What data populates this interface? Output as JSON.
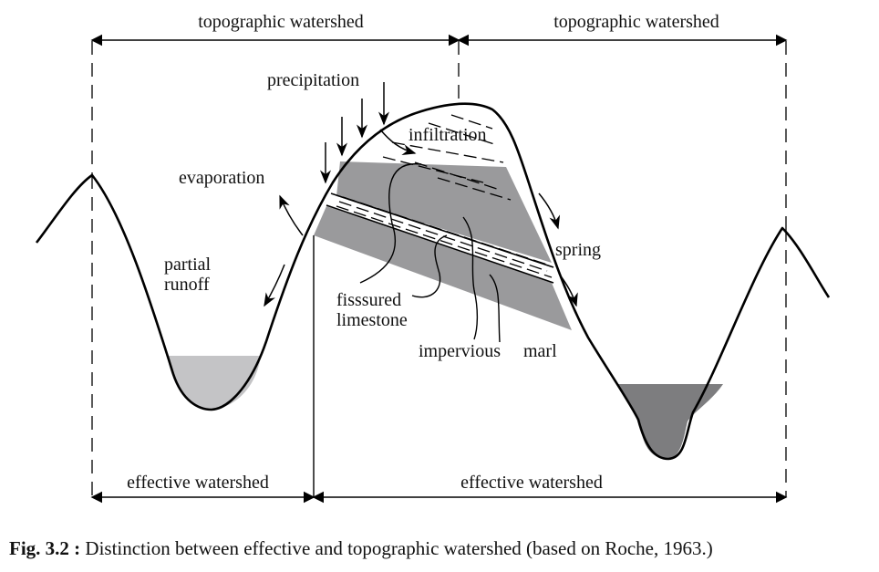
{
  "labels": {
    "top_left": "topographic watershed",
    "top_right": "topographic watershed",
    "precipitation": "precipitation",
    "infiltration": "infiltration",
    "evaporation": "evaporation",
    "partial_runoff_1": "partial",
    "partial_runoff_2": "runoff",
    "spring": "spring",
    "fissured_1": "fisssured",
    "fissured_2": "limestone",
    "impervious": "impervious",
    "marl": "marl",
    "bottom_left": "effective watershed",
    "bottom_right": "effective watershed"
  },
  "caption": {
    "prefix": "Fig. 3.2 :",
    "text": " Distinction between effective and topographic watershed (based on Roche, 1963.)"
  },
  "colors": {
    "limestone": "#9a9a9c",
    "left_water": "#c4c4c6",
    "right_water": "#7d7d7f",
    "line": "#000000"
  }
}
